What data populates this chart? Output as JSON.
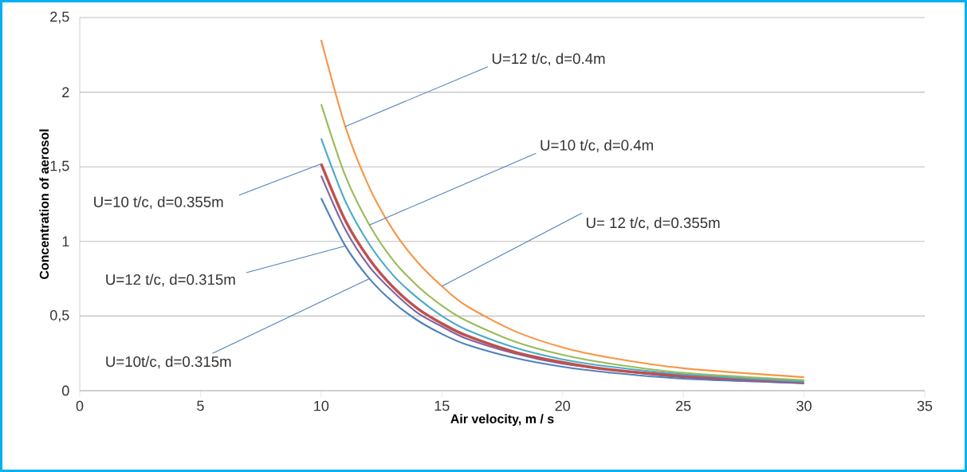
{
  "chart_data": {
    "type": "line",
    "xlabel": "Air velocity, m / s",
    "ylabel": "Concentration of aerosol",
    "x": [
      10,
      11,
      12,
      13,
      14,
      15,
      16,
      18,
      20,
      22,
      25,
      30
    ],
    "series": [
      {
        "color": "#4f81bd",
        "values": [
          1.29,
          0.97,
          0.75,
          0.59,
          0.47,
          0.38,
          0.31,
          0.22,
          0.16,
          0.12,
          0.08,
          0.05
        ]
      },
      {
        "color": "#8064a2",
        "values": [
          1.44,
          1.08,
          0.83,
          0.66,
          0.52,
          0.43,
          0.35,
          0.25,
          0.18,
          0.14,
          0.09,
          0.05
        ]
      },
      {
        "color": "#c0504d",
        "values": [
          1.52,
          1.14,
          0.88,
          0.69,
          0.55,
          0.45,
          0.37,
          0.26,
          0.19,
          0.14,
          0.1,
          0.06
        ]
      },
      {
        "color": "#4bacc6",
        "values": [
          1.69,
          1.27,
          0.98,
          0.77,
          0.62,
          0.5,
          0.41,
          0.29,
          0.21,
          0.16,
          0.11,
          0.06
        ]
      },
      {
        "color": "#9bbb59",
        "values": [
          1.92,
          1.44,
          1.11,
          0.87,
          0.7,
          0.57,
          0.47,
          0.33,
          0.24,
          0.18,
          0.12,
          0.07
        ]
      },
      {
        "color": "#f79646",
        "values": [
          2.35,
          1.77,
          1.36,
          1.07,
          0.86,
          0.7,
          0.57,
          0.4,
          0.29,
          0.22,
          0.15,
          0.09
        ]
      }
    ],
    "xlim": [
      0,
      35
    ],
    "xticks": [
      0,
      5,
      10,
      15,
      20,
      25,
      30,
      35
    ],
    "ylim": [
      0,
      2.5
    ],
    "yticks": [
      0,
      {
        "value": 0.5,
        "label": "0,5"
      },
      1,
      {
        "value": 1.5,
        "label": "1,5"
      },
      2,
      {
        "value": 2.5,
        "label": "2,5"
      }
    ],
    "grid": "y",
    "marker": "none",
    "line_style": "solid",
    "annotations": [
      {
        "text": "U=12 t/c, d=0.4m",
        "x": 11,
        "y": 1.77
      },
      {
        "text": "U=10 t/c, d=0.4m",
        "x": 12,
        "y": 1.11
      },
      {
        "text": "U=10 t/c, d=0.355m",
        "x": 10,
        "y": 1.52
      },
      {
        "text": "U=12 t/c, d=0.315m",
        "x": 11,
        "y": 0.97
      },
      {
        "text": "U= 12 t/c, d=0.355m",
        "x": 15,
        "y": 0.7
      },
      {
        "text": "U=10t/c, d=0.315m",
        "x": 12,
        "y": 0.75
      }
    ]
  }
}
